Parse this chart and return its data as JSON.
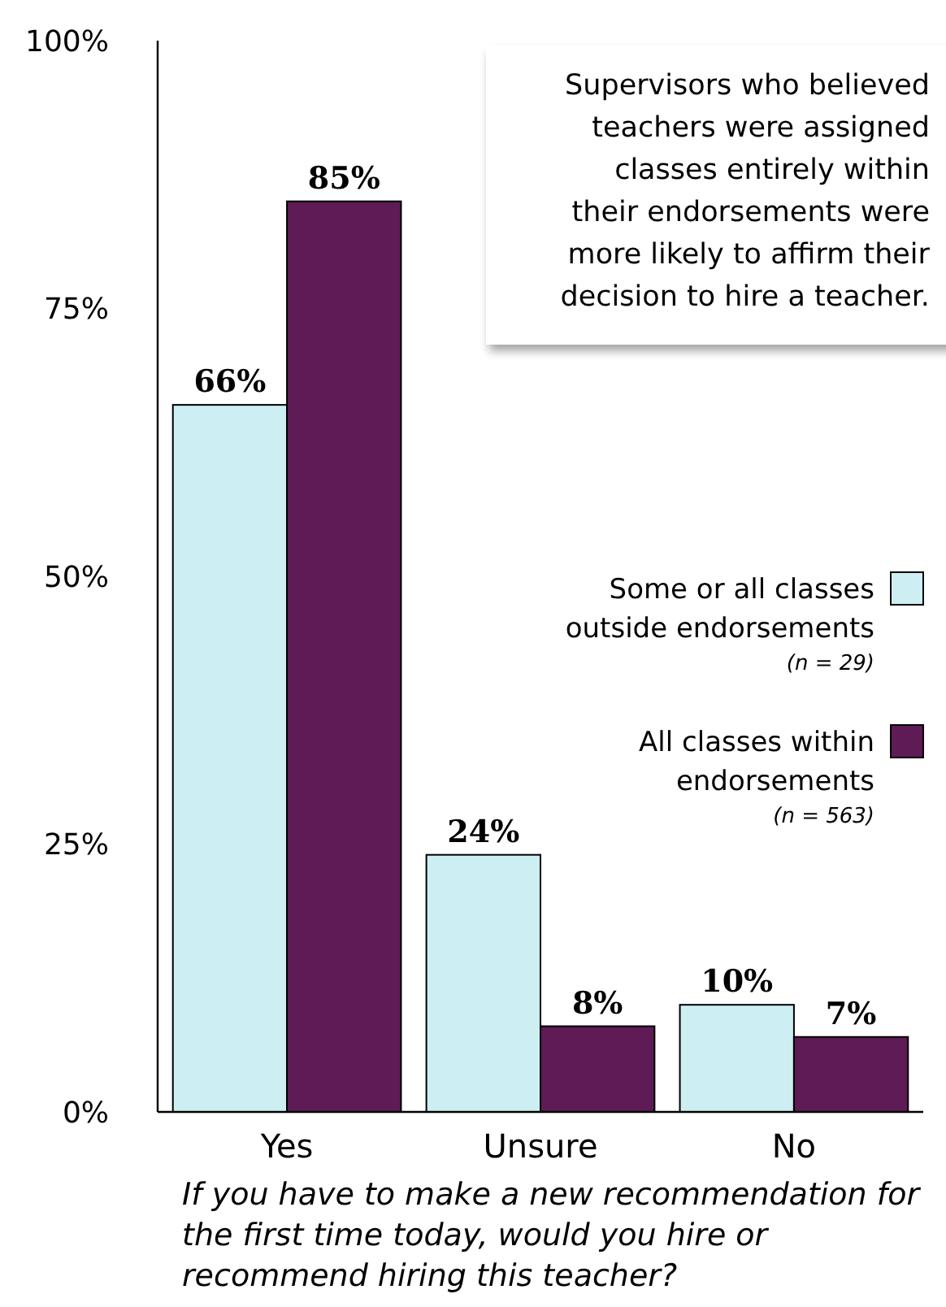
{
  "chart_data": {
    "type": "bar",
    "categories": [
      "Yes",
      "Unsure",
      "No"
    ],
    "series": [
      {
        "name": "Some or all classes outside endorsements (n = 29)",
        "color": "#cdeff3",
        "values": [
          66,
          24,
          10
        ],
        "value_labels": [
          "66%",
          "24%",
          "10%"
        ]
      },
      {
        "name": "All classes within endorsements (n = 563)",
        "color": "#5e1b55",
        "values": [
          85,
          8,
          7
        ],
        "value_labels": [
          "85%",
          "8%",
          "7%"
        ]
      }
    ],
    "ylim": [
      0,
      100
    ],
    "yticks": [
      {
        "value": 0,
        "label": "0%"
      },
      {
        "value": 25,
        "label": "25%"
      },
      {
        "value": 50,
        "label": "50%"
      },
      {
        "value": 75,
        "label": "75%"
      },
      {
        "value": 100,
        "label": "100%"
      }
    ],
    "xlabel": "If you have to make a new recommendation for the first time today, would you hire or recommend hiring this teacher?",
    "annotations": [
      "Supervisors who believed teachers were assigned classes entirely within their endorsements were more likely to affirm their decision to hire a teacher."
    ],
    "legend": "right",
    "grid": false
  }
}
